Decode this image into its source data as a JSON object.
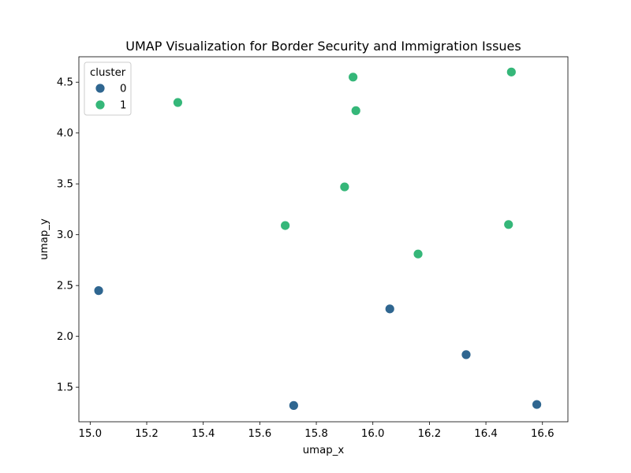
{
  "chart_data": {
    "type": "scatter",
    "title": "UMAP Visualization for Border Security and Immigration Issues",
    "xlabel": "umap_x",
    "ylabel": "umap_y",
    "xlim": [
      14.96,
      16.69
    ],
    "ylim": [
      1.16,
      4.75
    ],
    "xticks": [
      15.0,
      15.2,
      15.4,
      15.6,
      15.8,
      16.0,
      16.2,
      16.4,
      16.6
    ],
    "xtick_labels": [
      "15.0",
      "15.2",
      "15.4",
      "15.6",
      "15.8",
      "16.0",
      "16.2",
      "16.4",
      "16.6"
    ],
    "yticks": [
      1.5,
      2.0,
      2.5,
      3.0,
      3.5,
      4.0,
      4.5
    ],
    "ytick_labels": [
      "1.5",
      "2.0",
      "2.5",
      "3.0",
      "3.5",
      "4.0",
      "4.5"
    ],
    "grid": false,
    "legend": {
      "title": "cluster",
      "placement": "top-left",
      "entries": [
        {
          "label": "0",
          "color": "#2f6690"
        },
        {
          "label": "1",
          "color": "#35b779"
        }
      ]
    },
    "series": [
      {
        "name": "0",
        "color": "#2f6690",
        "points": [
          {
            "x": 15.03,
            "y": 2.45
          },
          {
            "x": 15.72,
            "y": 1.32
          },
          {
            "x": 16.06,
            "y": 2.27
          },
          {
            "x": 16.33,
            "y": 1.82
          },
          {
            "x": 16.58,
            "y": 1.33
          }
        ]
      },
      {
        "name": "1",
        "color": "#35b779",
        "points": [
          {
            "x": 15.31,
            "y": 4.3
          },
          {
            "x": 15.69,
            "y": 3.09
          },
          {
            "x": 15.9,
            "y": 3.47
          },
          {
            "x": 15.93,
            "y": 4.55
          },
          {
            "x": 15.94,
            "y": 4.22
          },
          {
            "x": 16.16,
            "y": 2.81
          },
          {
            "x": 16.48,
            "y": 3.1
          },
          {
            "x": 16.49,
            "y": 4.6
          }
        ]
      }
    ]
  }
}
